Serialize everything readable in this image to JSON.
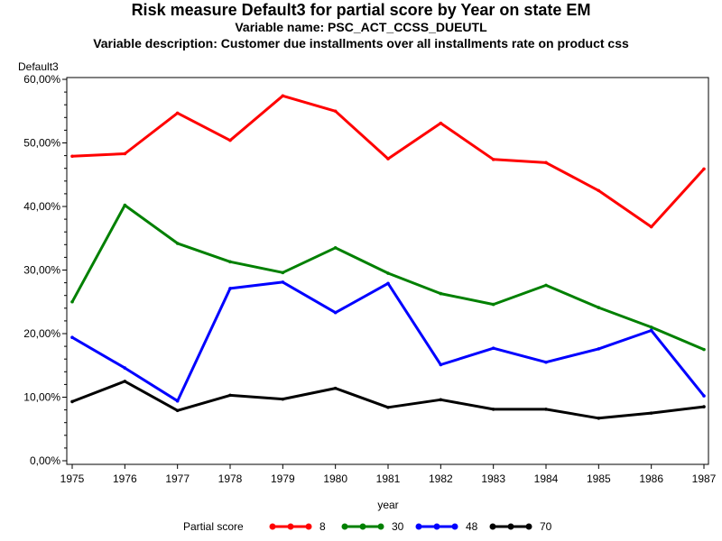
{
  "chart_data": {
    "type": "line",
    "title": "Risk measure Default3 for partial score by Year on state EM",
    "subtitle_1": "Variable name: PSC_ACT_CCSS_DUEUTL",
    "subtitle_2": "Variable description: Customer due installments over all installments rate on product css",
    "ylabel": "Default3",
    "xlabel": "year",
    "x": [
      1975,
      1976,
      1977,
      1978,
      1979,
      1980,
      1981,
      1982,
      1983,
      1984,
      1985,
      1986,
      1987
    ],
    "ylim": [
      0,
      60
    ],
    "yticks": [
      "0,00%",
      "10,00%",
      "20,00%",
      "30,00%",
      "40,00%",
      "50,00%",
      "60,00%"
    ],
    "legend_title": "Partial score",
    "legend_position": "bottom",
    "grid": false,
    "series": [
      {
        "name": "8",
        "color": "#ff0000",
        "values": [
          47.9,
          48.3,
          54.7,
          50.4,
          57.4,
          55.0,
          47.5,
          53.1,
          47.4,
          46.9,
          42.5,
          36.8,
          45.9
        ]
      },
      {
        "name": "30",
        "color": "#008000",
        "values": [
          25.0,
          40.2,
          34.2,
          31.3,
          29.6,
          33.5,
          29.5,
          26.3,
          24.6,
          27.6,
          24.1,
          21.0,
          17.5
        ]
      },
      {
        "name": "48",
        "color": "#0000ff",
        "values": [
          19.4,
          14.6,
          9.4,
          27.1,
          28.1,
          23.3,
          27.9,
          15.1,
          17.7,
          15.5,
          17.6,
          20.5,
          10.2
        ]
      },
      {
        "name": "70",
        "color": "#000000",
        "values": [
          9.3,
          12.5,
          7.9,
          10.3,
          9.7,
          11.4,
          8.4,
          9.6,
          8.1,
          8.1,
          6.7,
          7.5,
          8.5
        ]
      }
    ]
  }
}
